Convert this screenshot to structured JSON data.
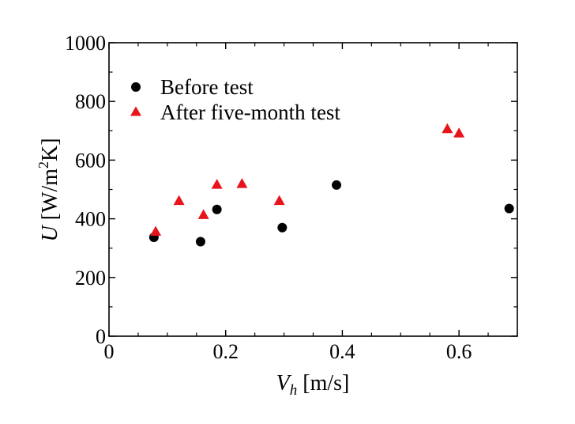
{
  "chart_data": {
    "type": "scatter",
    "xlabel": {
      "var": "V",
      "sub": "h",
      "unit": " [m/s]"
    },
    "ylabel": {
      "var": "U",
      "unit_pre": " [W/m",
      "unit_sup": "2",
      "unit_post": "K]"
    },
    "xlim": [
      0,
      0.7
    ],
    "ylim": [
      0,
      1000
    ],
    "xticks": [
      0,
      0.2,
      0.4,
      0.6
    ],
    "yticks": [
      0,
      200,
      400,
      600,
      800,
      1000
    ],
    "minor_xstep": 0.05,
    "minor_ystep": 100,
    "grid": false,
    "legend_position": "top-left",
    "series": [
      {
        "name": "Before test",
        "marker": "circle",
        "color": "#000000",
        "points": [
          {
            "x": 0.077,
            "y": 337
          },
          {
            "x": 0.157,
            "y": 322
          },
          {
            "x": 0.185,
            "y": 432
          },
          {
            "x": 0.297,
            "y": 370
          },
          {
            "x": 0.39,
            "y": 515
          },
          {
            "x": 0.686,
            "y": 435
          }
        ]
      },
      {
        "name": "After five-month test",
        "marker": "triangle",
        "color": "#e8141c",
        "points": [
          {
            "x": 0.08,
            "y": 355
          },
          {
            "x": 0.12,
            "y": 460
          },
          {
            "x": 0.162,
            "y": 412
          },
          {
            "x": 0.185,
            "y": 515
          },
          {
            "x": 0.228,
            "y": 518
          },
          {
            "x": 0.292,
            "y": 460
          },
          {
            "x": 0.58,
            "y": 705
          },
          {
            "x": 0.6,
            "y": 690
          }
        ]
      }
    ]
  }
}
